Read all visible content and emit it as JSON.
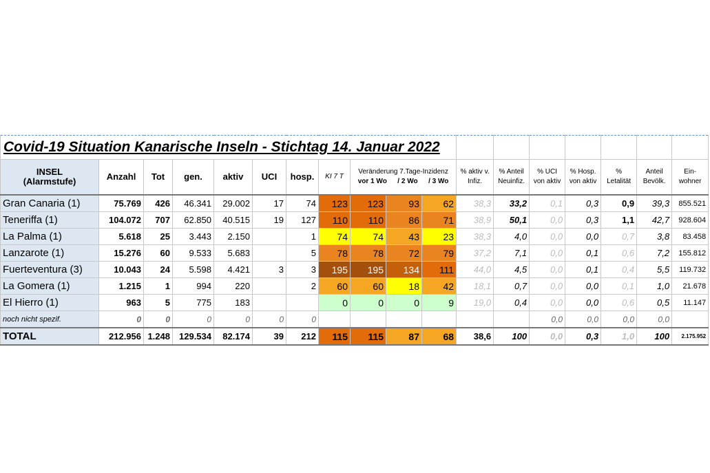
{
  "title": "Covid-19 Situation Kanarische Inseln - Stichtag 14. Januar 2022",
  "table": {
    "group_title": "Veränderung 7.Tage-Inzidenz",
    "header": [
      [
        "INSEL",
        "(Alarmstufe)"
      ],
      [
        "Anzahl"
      ],
      [
        "Tot"
      ],
      [
        "gen."
      ],
      [
        "aktiv"
      ],
      [
        "UCI"
      ],
      [
        "hosp."
      ],
      [
        "KI 7 T"
      ],
      [
        "vor 1 Wo"
      ],
      [
        "/  2 Wo"
      ],
      [
        "/  3 Wo"
      ],
      [
        "% aktiv v.",
        "Infiz."
      ],
      [
        "% Anteil",
        "Neuinfiz."
      ],
      [
        "% UCI",
        "von aktiv"
      ],
      [
        "% Hosp.",
        "von aktiv"
      ],
      [
        "%",
        "Letalität"
      ],
      [
        "Anteil",
        "Bevölk."
      ],
      [
        "Ein-",
        "wohner"
      ]
    ],
    "rows": [
      {
        "cells": [
          "Gran Canaria (1)",
          "75.769",
          "426",
          "46.341",
          "29.002",
          "17",
          "74",
          "123",
          "123",
          "93",
          "62",
          "38,3",
          "33,2",
          "0,1",
          "0,3",
          "0,9",
          "39,3",
          "855.521"
        ],
        "colors": [
          "#e26b0a",
          "#e26b0a",
          "#ea8420",
          "#f5a623"
        ]
      },
      {
        "cells": [
          "Teneriffa (1)",
          "104.072",
          "707",
          "62.850",
          "40.515",
          "19",
          "127",
          "110",
          "110",
          "86",
          "71",
          "38,9",
          "50,1",
          "0,0",
          "0,3",
          "1,1",
          "42,7",
          "928.604"
        ],
        "colors": [
          "#e26b0a",
          "#e26b0a",
          "#ea8420",
          "#ea8420"
        ]
      },
      {
        "cells": [
          "La Palma (1)",
          "5.618",
          "25",
          "3.443",
          "2.150",
          null,
          "1",
          "74",
          "74",
          "43",
          "23",
          "38,3",
          "4,0",
          "0,0",
          "0,0",
          "0,7",
          "3,8",
          "83.458"
        ],
        "colors": [
          "#ffff00",
          "#ffff00",
          "#f5a623",
          "#ffff00"
        ]
      },
      {
        "cells": [
          "Lanzarote (1)",
          "15.276",
          "60",
          "9.533",
          "5.683",
          null,
          "5",
          "78",
          "78",
          "72",
          "79",
          "37,2",
          "7,1",
          "0,0",
          "0,1",
          "0,6",
          "7,2",
          "155.812"
        ],
        "colors": [
          "#ea8420",
          "#ea8420",
          "#ea8420",
          "#ea8420"
        ]
      },
      {
        "cells": [
          "Fuerteventura (3)",
          "10.043",
          "24",
          "5.598",
          "4.421",
          "3",
          "3",
          "195",
          "195",
          "134",
          "111",
          "44,0",
          "4,5",
          "0,0",
          "0,1",
          "0,4",
          "5,5",
          "119.732"
        ],
        "colors": [
          "#a4500c",
          "#a4500c",
          "#c45f0a",
          "#e26b0a"
        ]
      },
      {
        "cells": [
          "La Gomera (1)",
          "1.215",
          "1",
          "994",
          "220",
          null,
          "2",
          "60",
          "60",
          "18",
          "42",
          "18,1",
          "0,7",
          "0,0",
          "0,0",
          "0,1",
          "1,0",
          "21.678"
        ],
        "colors": [
          "#f5a623",
          "#f5a623",
          "#ffff00",
          "#f5a623"
        ]
      },
      {
        "cells": [
          "El Hierro (1)",
          "963",
          "5",
          "775",
          "183",
          null,
          null,
          "0",
          "0",
          "0",
          "9",
          "19,0",
          "0,4",
          "0,0",
          "0,0",
          "0,6",
          "0,5",
          "11.147"
        ],
        "colors": [
          "#ccffcc",
          "#ccffcc",
          "#ccffcc",
          "#ccffcc"
        ]
      },
      {
        "cells": [
          "noch nicht spezif.",
          "0",
          "0",
          "0",
          "0",
          "0",
          "0",
          null,
          null,
          null,
          null,
          null,
          null,
          "0,0",
          "0,0",
          "0,0",
          "0,0",
          null
        ],
        "colors": [
          "#ffffff",
          "#ffffff",
          "#ffffff",
          "#ffffff"
        ]
      },
      {
        "cells": [
          "TOTAL",
          "212.956",
          "1.248",
          "129.534",
          "82.174",
          "39",
          "212",
          "115",
          "115",
          "87",
          "68",
          "38,6",
          "100",
          "0,0",
          "0,3",
          "1,0",
          "100",
          "2.175.952"
        ],
        "colors": [
          "#e26b0a",
          "#e26b0a",
          "#f5a623",
          "#f5a623"
        ]
      }
    ]
  }
}
